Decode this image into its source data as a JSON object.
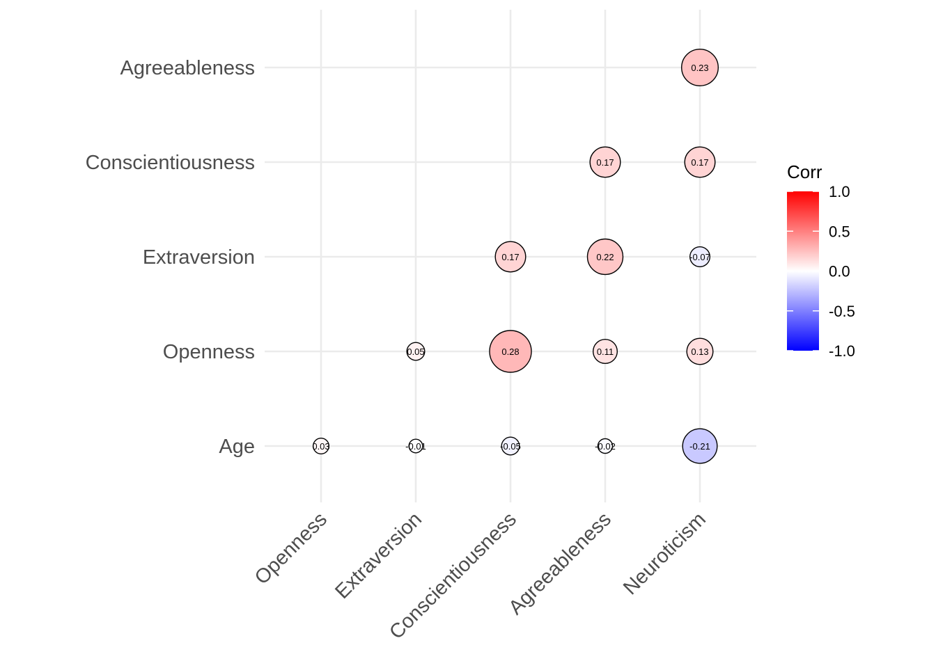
{
  "chart_data": {
    "type": "scatter",
    "subtype": "correlation-matrix-circles",
    "x_categories": [
      "Openness",
      "Extraversion",
      "Conscientiousness",
      "Agreeableness",
      "Neuroticism"
    ],
    "y_categories": [
      "Age",
      "Openness",
      "Extraversion",
      "Conscientiousness",
      "Agreeableness"
    ],
    "cells": [
      {
        "x": "Openness",
        "y": "Age",
        "value": 0.03,
        "label": "0.03"
      },
      {
        "x": "Extraversion",
        "y": "Age",
        "value": -0.01,
        "label": "-0.01"
      },
      {
        "x": "Conscientiousness",
        "y": "Age",
        "value": -0.05,
        "label": "-0.05"
      },
      {
        "x": "Agreeableness",
        "y": "Age",
        "value": -0.02,
        "label": "-0.02"
      },
      {
        "x": "Neuroticism",
        "y": "Age",
        "value": -0.21,
        "label": "-0.21"
      },
      {
        "x": "Extraversion",
        "y": "Openness",
        "value": 0.05,
        "label": "0.05"
      },
      {
        "x": "Conscientiousness",
        "y": "Openness",
        "value": 0.28,
        "label": "0.28"
      },
      {
        "x": "Agreeableness",
        "y": "Openness",
        "value": 0.11,
        "label": "0.11"
      },
      {
        "x": "Neuroticism",
        "y": "Openness",
        "value": 0.13,
        "label": "0.13"
      },
      {
        "x": "Conscientiousness",
        "y": "Extraversion",
        "value": 0.17,
        "label": "0.17"
      },
      {
        "x": "Agreeableness",
        "y": "Extraversion",
        "value": 0.22,
        "label": "0.22"
      },
      {
        "x": "Neuroticism",
        "y": "Extraversion",
        "value": -0.07,
        "label": "-0.07"
      },
      {
        "x": "Agreeableness",
        "y": "Conscientiousness",
        "value": 0.17,
        "label": "0.17"
      },
      {
        "x": "Neuroticism",
        "y": "Conscientiousness",
        "value": 0.17,
        "label": "0.17"
      },
      {
        "x": "Neuroticism",
        "y": "Agreeableness",
        "value": 0.23,
        "label": "0.23"
      }
    ],
    "legend": {
      "title": "Corr",
      "position": "right",
      "range": [
        -1.0,
        1.0
      ],
      "ticks": [
        {
          "value": 1.0,
          "label": "1.0"
        },
        {
          "value": 0.5,
          "label": "0.5"
        },
        {
          "value": 0.0,
          "label": "0.0"
        },
        {
          "value": -0.5,
          "label": "-0.5"
        },
        {
          "value": -1.0,
          "label": "-1.0"
        }
      ],
      "colors": {
        "low": "#0000ff",
        "mid": "#ffffff",
        "high": "#ff0000"
      }
    },
    "grid": true,
    "colors": {
      "grid": "#ebebeb",
      "circle_stroke": "#000000",
      "axis_text": "#4d4d4d"
    }
  }
}
